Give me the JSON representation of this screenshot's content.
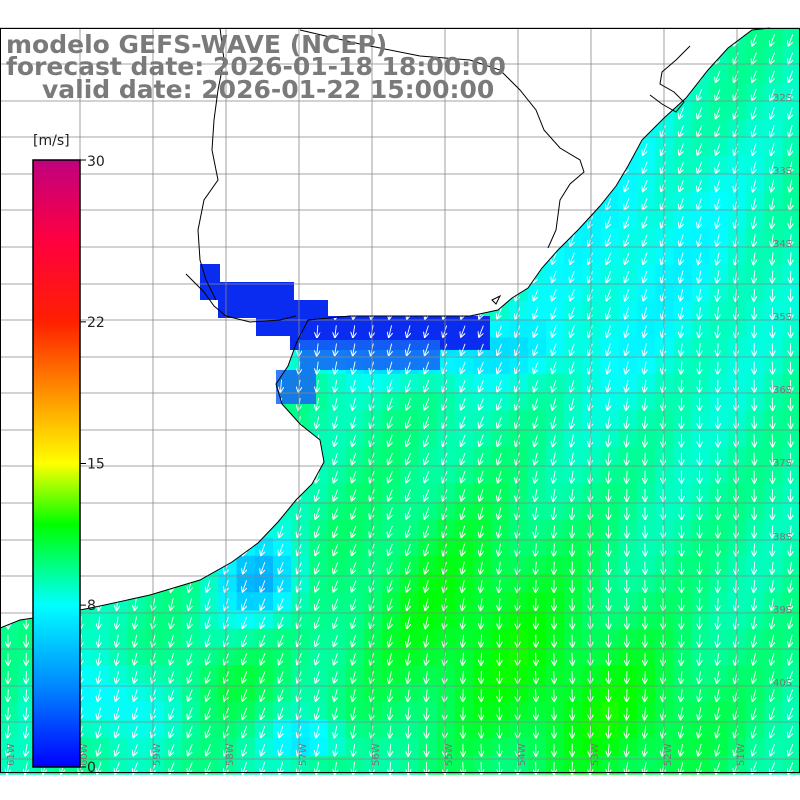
{
  "title": {
    "model": "modelo GEFS-WAVE (NCEP)",
    "forecast": "forecast date: 2026-01-18 18:00:00",
    "valid": "valid date: 2026-01-22 15:00:00"
  },
  "colorbar": {
    "unit": "[m/s]",
    "min": 0,
    "max": 30,
    "ticks": [
      "30",
      "22",
      "15",
      "8",
      "0"
    ],
    "tick_values": [
      30,
      22,
      15,
      8,
      0
    ],
    "stops": [
      {
        "value": 0,
        "color": "#0000ff"
      },
      {
        "value": 4,
        "color": "#0088ff"
      },
      {
        "value": 8,
        "color": "#00ffff"
      },
      {
        "value": 12,
        "color": "#00ff00"
      },
      {
        "value": 15,
        "color": "#ffff00"
      },
      {
        "value": 18,
        "color": "#ffa000"
      },
      {
        "value": 22,
        "color": "#ff2000"
      },
      {
        "value": 26,
        "color": "#ff0040"
      },
      {
        "value": 30,
        "color": "#c0007f"
      }
    ]
  },
  "map": {
    "lat_labels": [
      "32S",
      "33S",
      "34S",
      "35S",
      "36S",
      "37S",
      "38S",
      "39S",
      "40S"
    ],
    "lon_labels": [
      "61W",
      "60W",
      "59W",
      "58W",
      "57W",
      "56W",
      "55W",
      "54W",
      "53W",
      "52W",
      "51W"
    ],
    "land_color": "#ffffff",
    "coast_color": "#000000",
    "grid_color": "#888888",
    "arrow_color": "#ffffff",
    "wind_direction": "south-southwest (from north-northeast)"
  }
}
